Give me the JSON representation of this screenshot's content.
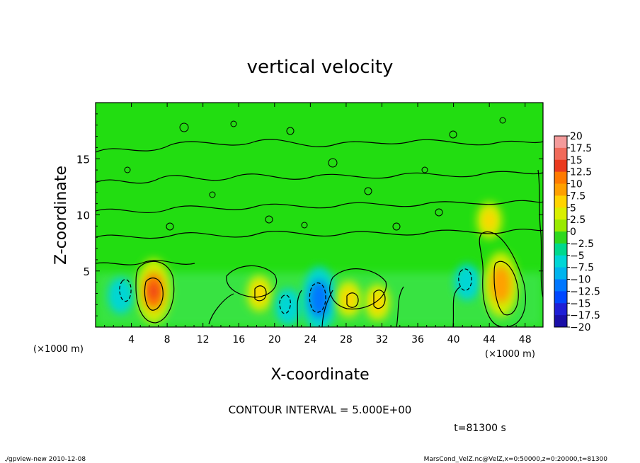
{
  "chart_data": {
    "type": "heatmap",
    "title": "vertical velocity",
    "xlabel": "X-coordinate",
    "ylabel": "Z-coordinate",
    "x_unit": "(×1000 m)",
    "xlim": [
      0,
      50
    ],
    "ylim": [
      0,
      20
    ],
    "x_ticks": [
      4,
      8,
      12,
      16,
      20,
      24,
      28,
      32,
      36,
      40,
      44,
      48
    ],
    "y_ticks": [
      5,
      10,
      15
    ],
    "colorbar": {
      "labels": [
        "20",
        "17.5",
        "15",
        "12.5",
        "10",
        "7.5",
        "5",
        "2.5",
        "0",
        "-2.5",
        "-5",
        "-7.5",
        "-10",
        "-12.5",
        "-15",
        "-17.5",
        "-20"
      ],
      "colors": [
        "#f49b9b",
        "#f06a5a",
        "#ea3a1e",
        "#ff7a00",
        "#ffa000",
        "#ffd400",
        "#d9ef00",
        "#99ea00",
        "#2fd81e",
        "#00d98d",
        "#00d6d6",
        "#00b4ee",
        "#0077ff",
        "#0047ff",
        "#1f1fd6",
        "#1a0fa8",
        "#6f1ec8"
      ]
    },
    "features": [
      {
        "x": 6.5,
        "z": 3.2,
        "value": 12.5
      },
      {
        "x": 2.8,
        "z": 2.8,
        "value": -5
      },
      {
        "x": 18.3,
        "z": 3.0,
        "value": 7.5
      },
      {
        "x": 21.5,
        "z": 1.8,
        "value": -5
      },
      {
        "x": 25.0,
        "z": 2.5,
        "value": -10
      },
      {
        "x": 28.3,
        "z": 2.5,
        "value": 7.5
      },
      {
        "x": 31.5,
        "z": 2.2,
        "value": 7.5
      },
      {
        "x": 41.5,
        "z": 4.0,
        "value": -5
      },
      {
        "x": 45.3,
        "z": 3.8,
        "value": 10
      },
      {
        "x": 44.0,
        "z": 9.5,
        "value": 7.5
      }
    ],
    "grid": false,
    "legend": "right"
  },
  "annotations": {
    "contour_interval": "CONTOUR INTERVAL = 5.000E+00",
    "time": "t=81300 s",
    "footer_left": "./gpview-new   2010-12-08",
    "footer_right": "MarsCond_VelZ.nc@VelZ,x=0:50000,z=0:20000,t=81300"
  }
}
